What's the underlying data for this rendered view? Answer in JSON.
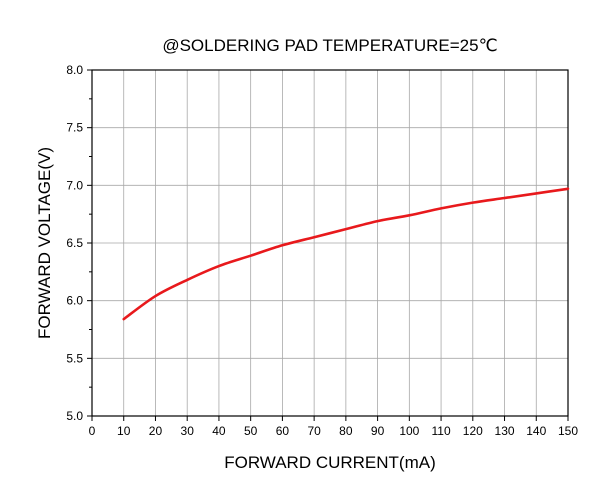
{
  "chart_data": {
    "type": "line",
    "title": "@SOLDERING PAD TEMPERATURE=25℃",
    "xlabel": "FORWARD CURRENT(mA)",
    "ylabel": "FORWARD VOLTAGE(V)",
    "xlim": [
      0,
      150
    ],
    "ylim": [
      5.0,
      8.0
    ],
    "xticks": [
      0,
      10,
      20,
      30,
      40,
      50,
      60,
      70,
      80,
      90,
      100,
      110,
      120,
      130,
      140,
      150
    ],
    "yticks": [
      5.0,
      5.5,
      6.0,
      6.5,
      7.0,
      7.5,
      8.0
    ],
    "xtick_labels": [
      "0",
      "10",
      "20",
      "30",
      "40",
      "50",
      "60",
      "70",
      "80",
      "90",
      "100",
      "110",
      "120",
      "130",
      "140",
      "150"
    ],
    "ytick_labels": [
      "5.0",
      "5.5",
      "6.0",
      "6.5",
      "7.0",
      "7.5",
      "8.0"
    ],
    "grid": true,
    "line_color": "#e8191c",
    "grid_color": "#a8a8a8",
    "series": [
      {
        "x": [
          10,
          20,
          30,
          40,
          50,
          60,
          70,
          80,
          90,
          100,
          110,
          120,
          130,
          140,
          150
        ],
        "y": [
          5.84,
          6.04,
          6.18,
          6.3,
          6.39,
          6.48,
          6.55,
          6.62,
          6.69,
          6.74,
          6.8,
          6.85,
          6.89,
          6.93,
          6.97
        ]
      }
    ]
  }
}
